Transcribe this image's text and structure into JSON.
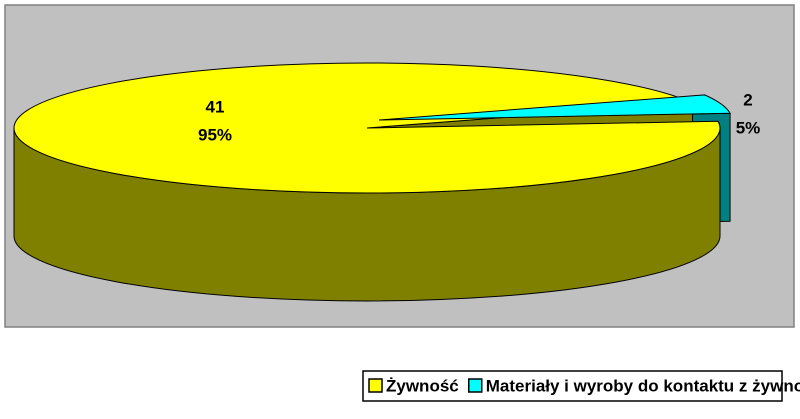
{
  "chart_data": {
    "type": "pie",
    "categories": [
      "Żywność",
      "Materiały i wyroby do kontaktu z żywnością"
    ],
    "values": [
      41,
      2
    ],
    "percent_labels": [
      "95%",
      "5%"
    ],
    "colors": [
      "#ffff00",
      "#00ffff"
    ],
    "side_colors": [
      "#808000",
      "#008080"
    ],
    "legend": "bottom"
  }
}
